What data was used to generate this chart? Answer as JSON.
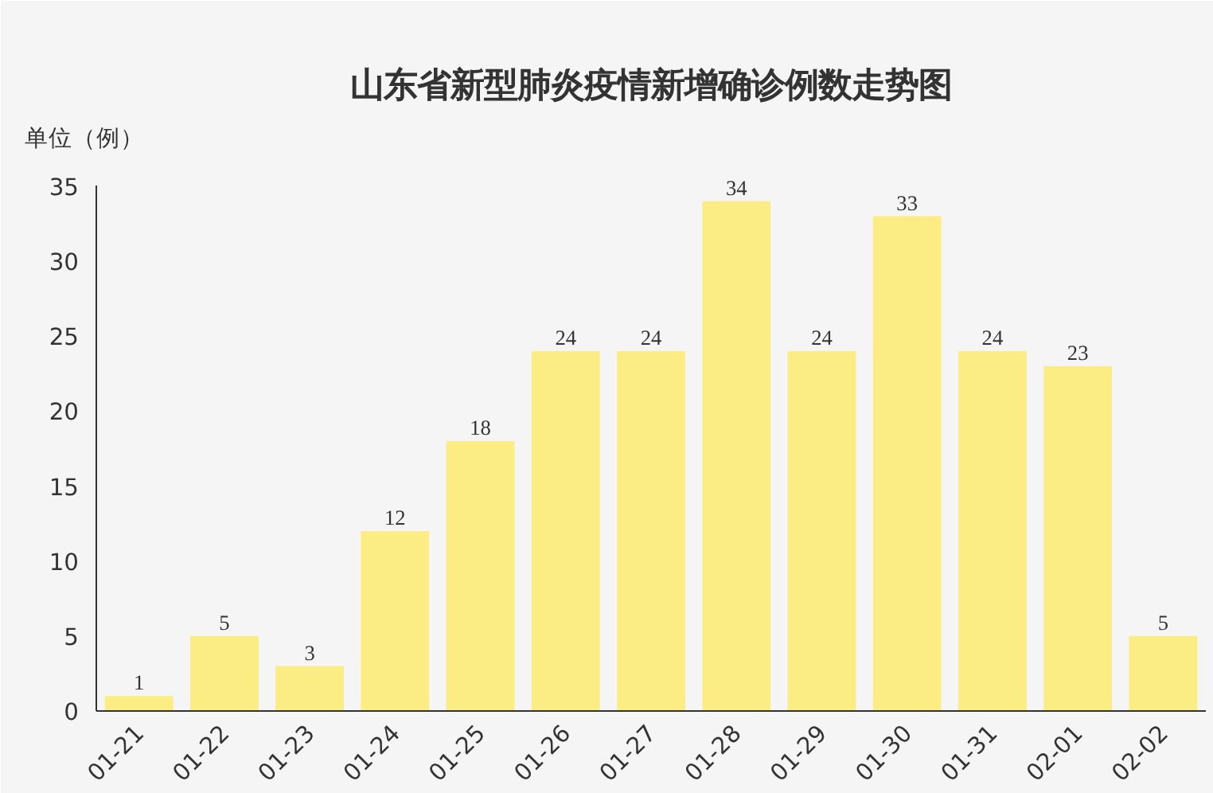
{
  "chart_data": {
    "type": "bar",
    "title": "山东省新型肺炎疫情新增确诊例数走势图",
    "ylabel": "单位（例）",
    "categories": [
      "01-21",
      "01-22",
      "01-23",
      "01-24",
      "01-25",
      "01-26",
      "01-27",
      "01-28",
      "01-29",
      "01-30",
      "01-31",
      "02-01",
      "02-02"
    ],
    "values": [
      1,
      5,
      3,
      12,
      18,
      24,
      24,
      34,
      24,
      33,
      24,
      23,
      5
    ],
    "color": "#fbec83",
    "ylim": [
      0,
      35
    ],
    "yticks": [
      0,
      5,
      10,
      15,
      20,
      25,
      30,
      35
    ],
    "data_labels": true,
    "grid": false
  }
}
